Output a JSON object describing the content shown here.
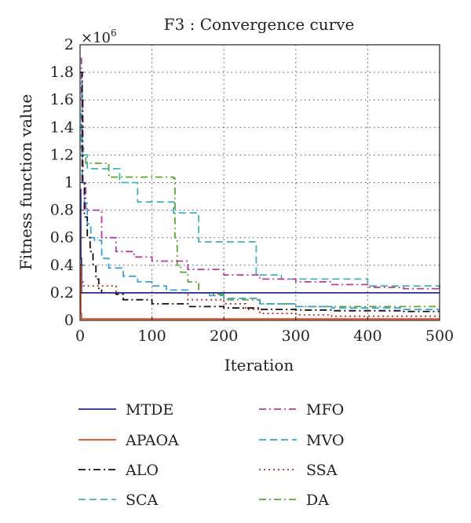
{
  "chart_data": {
    "type": "line",
    "title": "F3 : Convergence curve",
    "xlabel": "Iteration",
    "ylabel": "Fitness function value",
    "y_multiplier": {
      "base": "×10",
      "exponent": "6"
    },
    "xlim": [
      0,
      500
    ],
    "ylim": [
      0,
      2
    ],
    "xticks": [
      0,
      100,
      200,
      300,
      400,
      500
    ],
    "yticks": [
      0,
      0.2,
      0.4,
      0.6,
      0.8,
      1,
      1.2,
      1.4,
      1.6,
      1.8,
      2
    ],
    "ytick_labels": [
      "0",
      "0.2",
      "0.4",
      "0.6",
      "0.8",
      "1",
      "1.2",
      "1.4",
      "1.6",
      "1.8",
      "2"
    ],
    "grid": true,
    "legend_position": "below",
    "series": [
      {
        "name": "MTDE",
        "color": "#2b2b8f",
        "dash": "solid",
        "x": [
          0,
          1,
          2,
          3,
          500
        ],
        "y": [
          0.95,
          0.45,
          0.2,
          0.2,
          0.2
        ]
      },
      {
        "name": "APAOA",
        "color": "#e8481b",
        "dash": "solid",
        "x": [
          0,
          1,
          2,
          3,
          500
        ],
        "y": [
          0.4,
          0.05,
          0.01,
          0.01,
          0.01
        ]
      },
      {
        "name": "ALO",
        "color": "#111111",
        "dash": "dashdot",
        "x": [
          0,
          3,
          6,
          10,
          14,
          18,
          22,
          26,
          30,
          50,
          60,
          100,
          150,
          200,
          250,
          300,
          350,
          400,
          450,
          500
        ],
        "y": [
          1.8,
          1.0,
          0.75,
          0.6,
          0.5,
          0.4,
          0.3,
          0.22,
          0.2,
          0.19,
          0.15,
          0.12,
          0.1,
          0.09,
          0.08,
          0.075,
          0.07,
          0.07,
          0.065,
          0.065
        ]
      },
      {
        "name": "SCA",
        "color": "#3fb5b9",
        "dash": "dash",
        "x": [
          0,
          2,
          5,
          10,
          45,
          55,
          80,
          100,
          120,
          130,
          160,
          165,
          200,
          240,
          245,
          280,
          400,
          500
        ],
        "y": [
          1.5,
          1.25,
          1.2,
          1.1,
          1.1,
          1.0,
          0.86,
          0.86,
          0.86,
          0.78,
          0.78,
          0.57,
          0.57,
          0.57,
          0.33,
          0.3,
          0.25,
          0.22
        ]
      },
      {
        "name": "MFO",
        "color": "#b43aa7",
        "dash": "dashdot",
        "x": [
          0,
          2,
          4,
          8,
          12,
          20,
          30,
          50,
          75,
          100,
          150,
          200,
          250,
          300,
          350,
          400,
          450,
          500
        ],
        "y": [
          1.9,
          1.6,
          1.0,
          0.8,
          0.8,
          0.8,
          0.6,
          0.5,
          0.46,
          0.43,
          0.37,
          0.33,
          0.3,
          0.28,
          0.26,
          0.24,
          0.23,
          0.22
        ]
      },
      {
        "name": "MVO",
        "color": "#3a9fe0",
        "dash": "dash",
        "x": [
          0,
          3,
          6,
          10,
          15,
          20,
          30,
          40,
          60,
          80,
          100,
          120,
          150,
          180,
          200,
          250,
          300,
          350,
          400,
          450,
          500
        ],
        "y": [
          1.8,
          1.0,
          0.85,
          0.7,
          0.6,
          0.58,
          0.45,
          0.38,
          0.32,
          0.28,
          0.25,
          0.22,
          0.2,
          0.18,
          0.16,
          0.12,
          0.1,
          0.09,
          0.09,
          0.08,
          0.08
        ]
      },
      {
        "name": "SSA",
        "color": "#c0272d",
        "dash": "dot",
        "x": [
          0,
          2,
          4,
          6,
          10,
          20,
          40,
          50,
          80,
          100,
          120,
          150,
          200,
          230,
          250,
          300,
          350,
          400,
          450,
          500
        ],
        "y": [
          0.4,
          0.3,
          0.25,
          0.25,
          0.25,
          0.25,
          0.25,
          0.2,
          0.2,
          0.2,
          0.2,
          0.15,
          0.12,
          0.08,
          0.05,
          0.04,
          0.03,
          0.03,
          0.03,
          0.03
        ]
      },
      {
        "name": "DA",
        "color": "#5aaa2f",
        "dash": "dashdot",
        "x": [
          0,
          3,
          8,
          30,
          40,
          130,
          132,
          135,
          140,
          150,
          165,
          180,
          200,
          250,
          300,
          400,
          500
        ],
        "y": [
          1.25,
          1.18,
          1.14,
          1.14,
          1.04,
          1.03,
          0.6,
          0.4,
          0.35,
          0.28,
          0.2,
          0.19,
          0.15,
          0.12,
          0.1,
          0.1,
          0.1
        ]
      }
    ]
  }
}
